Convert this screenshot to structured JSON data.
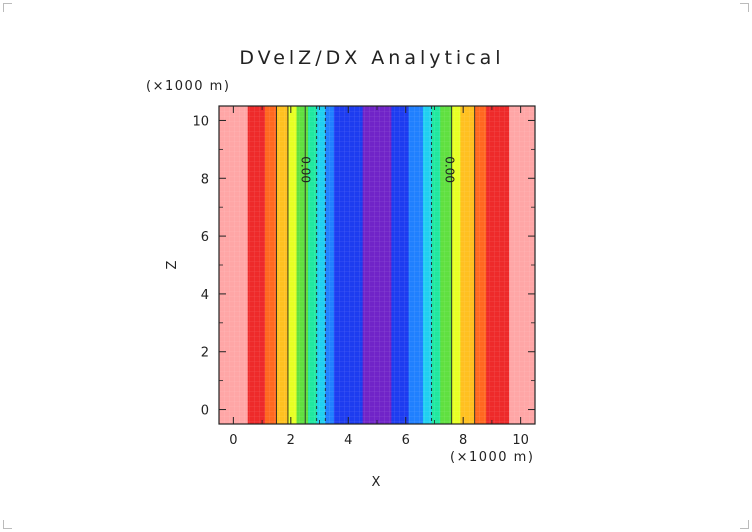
{
  "chart_data": {
    "type": "heatmap",
    "title": "DVelZ/DX Analytical",
    "xlabel": "X",
    "ylabel": "Z",
    "x_unit": "(×1000 m)",
    "y_unit": "(×1000 m)",
    "xlim": [
      -0.5,
      10.5
    ],
    "ylim": [
      -0.5,
      10.5
    ],
    "x_ticks": [
      0,
      2,
      4,
      6,
      8,
      10
    ],
    "y_ticks": [
      0,
      2,
      4,
      6,
      8,
      10
    ],
    "x_tick_labels": [
      "0",
      "2",
      "4",
      "6",
      "8",
      "10"
    ],
    "y_tick_labels": [
      "0",
      "2",
      "4",
      "6",
      "8",
      "10"
    ],
    "bands": [
      {
        "x0": -0.5,
        "x1": 0.5,
        "color": "#ffa6a6"
      },
      {
        "x0": 0.5,
        "x1": 1.1,
        "color": "#ee2a2a"
      },
      {
        "x0": 1.1,
        "x1": 1.5,
        "color": "#ff6820"
      },
      {
        "x0": 1.5,
        "x1": 1.9,
        "color": "#ffc020"
      },
      {
        "x0": 1.9,
        "x1": 2.2,
        "color": "#e6ff24"
      },
      {
        "x0": 2.2,
        "x1": 2.6,
        "color": "#60e040"
      },
      {
        "x0": 2.6,
        "x1": 2.9,
        "color": "#20e8a0"
      },
      {
        "x0": 2.9,
        "x1": 3.2,
        "color": "#20d0f0"
      },
      {
        "x0": 3.2,
        "x1": 3.5,
        "color": "#2080ff"
      },
      {
        "x0": 3.5,
        "x1": 4.5,
        "color": "#1d3cf0"
      },
      {
        "x0": 4.5,
        "x1": 5.5,
        "color": "#7024c8"
      },
      {
        "x0": 5.5,
        "x1": 6.1,
        "color": "#1d3cf0"
      },
      {
        "x0": 6.1,
        "x1": 6.6,
        "color": "#2080ff"
      },
      {
        "x0": 6.6,
        "x1": 6.9,
        "color": "#20d0f0"
      },
      {
        "x0": 6.9,
        "x1": 7.2,
        "color": "#20e8a0"
      },
      {
        "x0": 7.2,
        "x1": 7.6,
        "color": "#60e040"
      },
      {
        "x0": 7.6,
        "x1": 7.9,
        "color": "#e6ff24"
      },
      {
        "x0": 7.9,
        "x1": 8.4,
        "color": "#ffc020"
      },
      {
        "x0": 8.4,
        "x1": 8.8,
        "color": "#ff6820"
      },
      {
        "x0": 8.8,
        "x1": 9.6,
        "color": "#ee2a2a"
      },
      {
        "x0": 9.6,
        "x1": 10.5,
        "color": "#ffa6a6"
      }
    ],
    "contours": [
      {
        "x": 1.5,
        "style": "solid"
      },
      {
        "x": 1.9,
        "style": "solid"
      },
      {
        "x": 2.5,
        "style": "solid"
      },
      {
        "x": 2.9,
        "style": "dashed"
      },
      {
        "x": 3.2,
        "style": "dashed"
      },
      {
        "x": 6.9,
        "style": "dashed"
      },
      {
        "x": 7.6,
        "style": "solid"
      },
      {
        "x": 8.4,
        "style": "solid"
      }
    ],
    "contour_labels": [
      {
        "x": 2.5,
        "z": 8.3,
        "text": "0.00"
      },
      {
        "x": 7.5,
        "z": 8.3,
        "text": "0.00"
      }
    ]
  }
}
